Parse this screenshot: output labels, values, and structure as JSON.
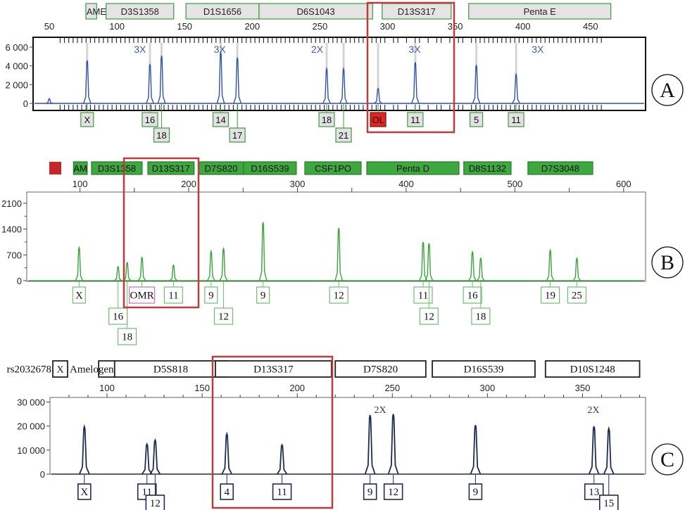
{
  "chart_data": [
    {
      "panel": "A",
      "type": "line",
      "title": "",
      "xlabel": "",
      "ylabel": "",
      "xlim": [
        35,
        470
      ],
      "xticks": [
        50,
        100,
        150,
        200,
        250,
        300,
        350,
        400,
        450
      ],
      "ylim": [
        -700,
        7000
      ],
      "yticks": [
        0,
        2000,
        4000,
        6000
      ],
      "ytick_labels": [
        "0",
        "2 000",
        "4 000",
        "6 000"
      ],
      "color": "#2e52a8",
      "loci": [
        {
          "name": "AMEL",
          "start": 77,
          "end": 85
        },
        {
          "name": "D3S1358",
          "start": 92,
          "end": 142
        },
        {
          "name": "D1S1656",
          "start": 151,
          "end": 205
        },
        {
          "name": "D6S1043",
          "start": 205,
          "end": 289
        },
        {
          "name": "D13S317",
          "start": 296,
          "end": 347
        },
        {
          "name": "Penta E",
          "start": 360,
          "end": 465
        }
      ],
      "multipliers": [
        {
          "text": "3X",
          "x": 117
        },
        {
          "text": "3X",
          "x": 176
        },
        {
          "text": "2X",
          "x": 248
        },
        {
          "text": "3X",
          "x": 320
        },
        {
          "text": "3X",
          "x": 411
        }
      ],
      "peaks": [
        {
          "x": 50,
          "y": 500,
          "allele": null
        },
        {
          "x": 78,
          "y": 4600,
          "allele": "X",
          "row": 1
        },
        {
          "x": 124.4,
          "y": 4200,
          "allele": "16",
          "row": 1
        },
        {
          "x": 133,
          "y": 5100,
          "allele": "18",
          "row": 2
        },
        {
          "x": 176.7,
          "y": 5500,
          "allele": "14",
          "row": 1
        },
        {
          "x": 189,
          "y": 4900,
          "allele": "17",
          "row": 2
        },
        {
          "x": 255,
          "y": 3700,
          "allele": "18",
          "row": 1
        },
        {
          "x": 267.5,
          "y": 3700,
          "allele": "21",
          "row": 2
        },
        {
          "x": 293,
          "y": 1600,
          "allele": "OL",
          "row": 1,
          "flag": "red"
        },
        {
          "x": 320.5,
          "y": 4400,
          "allele": "11",
          "row": 1
        },
        {
          "x": 365.6,
          "y": 4100,
          "allele": "5",
          "row": 1
        },
        {
          "x": 395,
          "y": 3100,
          "allele": "11",
          "row": 1
        }
      ],
      "highlight_locus": "D13S317",
      "panel_label": "A"
    },
    {
      "panel": "B",
      "type": "line",
      "title": "",
      "xlabel": "",
      "ylabel": "",
      "xlim": [
        50,
        623
      ],
      "xticks": [
        100,
        200,
        300,
        400,
        500,
        600
      ],
      "ylim": [
        0,
        2300
      ],
      "yticks": [
        0,
        700,
        1400,
        2100
      ],
      "ytick_labels": [
        "0",
        "700",
        "1400",
        "2100"
      ],
      "color": "#3aa43a",
      "loci": [
        {
          "name": "AM",
          "start": 94,
          "end": 106.7
        },
        {
          "name": "D3S1358",
          "start": 110.6,
          "end": 157.2
        },
        {
          "name": "D13S317",
          "start": 162.4,
          "end": 205
        },
        {
          "name": "D7S820",
          "start": 209,
          "end": 250.5
        },
        {
          "name": "D16S539",
          "start": 250.5,
          "end": 299
        },
        {
          "name": "CSF1PO",
          "start": 306.8,
          "end": 358.6
        },
        {
          "name": "Penta D",
          "start": 363.8,
          "end": 448.6
        },
        {
          "name": "D8S1132",
          "start": 453,
          "end": 496.5
        },
        {
          "name": "D7S3048",
          "start": 512,
          "end": 571.6
        }
      ],
      "multipliers": [],
      "peaks": [
        {
          "x": 99.2,
          "y": 900,
          "allele": "X",
          "row": 1
        },
        {
          "x": 135,
          "y": 380,
          "allele": "16",
          "row": 2
        },
        {
          "x": 143.4,
          "y": 490,
          "allele": "18",
          "row": 3
        },
        {
          "x": 157,
          "y": 630,
          "allele": "OMR",
          "row": 1,
          "flag": "purple"
        },
        {
          "x": 186,
          "y": 420,
          "allele": "11",
          "row": 1
        },
        {
          "x": 220.6,
          "y": 800,
          "allele": "9",
          "row": 1
        },
        {
          "x": 232,
          "y": 870,
          "allele": "12",
          "row": 2
        },
        {
          "x": 268.4,
          "y": 1590,
          "allele": "9",
          "row": 1
        },
        {
          "x": 338,
          "y": 1430,
          "allele": "12",
          "row": 1
        },
        {
          "x": 415.6,
          "y": 1050,
          "allele": "11",
          "row": 1
        },
        {
          "x": 421,
          "y": 1010,
          "allele": "12",
          "row": 2
        },
        {
          "x": 461,
          "y": 780,
          "allele": "16",
          "row": 1
        },
        {
          "x": 468.6,
          "y": 610,
          "allele": "18",
          "row": 2
        },
        {
          "x": 532.5,
          "y": 830,
          "allele": "19",
          "row": 1
        },
        {
          "x": 557,
          "y": 610,
          "allele": "25",
          "row": 1
        }
      ],
      "highlight_locus": "D13S317",
      "panel_label": "B"
    },
    {
      "panel": "C",
      "type": "line",
      "title": "",
      "xlabel": "",
      "ylabel": "",
      "xlim": [
        71,
        384
      ],
      "xticks": [
        100,
        150,
        200,
        250,
        300,
        350
      ],
      "ylim": [
        0,
        32000
      ],
      "yticks": [
        0,
        10000,
        20000,
        30000
      ],
      "ytick_labels": [
        "0",
        "10 000",
        "20 000",
        "30 000"
      ],
      "color": "#1c2c52",
      "loci": [
        {
          "name": "rs2032678",
          "start": 81,
          "end": 89,
          "boxed_label": "X"
        },
        {
          "name": "Amelogenin",
          "start": 95.6,
          "end": 104
        },
        {
          "name": "D5S818",
          "start": 104,
          "end": 163
        },
        {
          "name": "D13S317",
          "start": 157,
          "end": 218
        },
        {
          "name": "D7S820",
          "start": 220,
          "end": 267.6
        },
        {
          "name": "D16S539",
          "start": 271,
          "end": 325
        },
        {
          "name": "D10S1248",
          "start": 330.5,
          "end": 380
        }
      ],
      "multipliers": [
        {
          "text": "2X",
          "x": 243.6
        },
        {
          "text": "2X",
          "x": 355.7
        }
      ],
      "peaks": [
        {
          "x": 88.1,
          "y": 19800,
          "allele": "X",
          "row": 1
        },
        {
          "x": 121,
          "y": 12500,
          "allele": "11",
          "row": 1
        },
        {
          "x": 125.3,
          "y": 14200,
          "allele": "12",
          "row": 2
        },
        {
          "x": 163,
          "y": 16800,
          "allele": "4",
          "row": 1
        },
        {
          "x": 192,
          "y": 12200,
          "allele": "11",
          "row": 1
        },
        {
          "x": 238.3,
          "y": 24600,
          "allele": "9",
          "row": 1
        },
        {
          "x": 250.5,
          "y": 25000,
          "allele": "12",
          "row": 1
        },
        {
          "x": 293.7,
          "y": 20400,
          "allele": "9",
          "row": 1
        },
        {
          "x": 356,
          "y": 19900,
          "allele": "13",
          "row": 1
        },
        {
          "x": 363.8,
          "y": 19000,
          "allele": "15",
          "row": 2
        }
      ],
      "highlight_locus": "D13S317",
      "panel_label": "C"
    }
  ]
}
